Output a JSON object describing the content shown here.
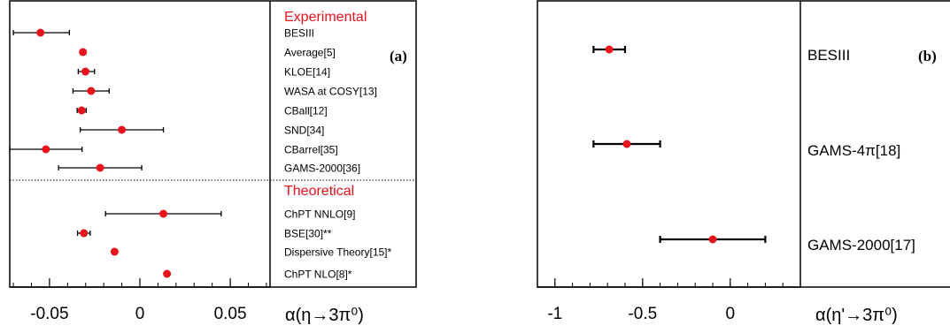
{
  "chart_data": [
    {
      "type": "scatter",
      "panel_tag": "(a)",
      "xlabel": "α(η→3π⁰)",
      "xlim": [
        -0.072,
        0.072
      ],
      "xticks": [
        -0.05,
        0,
        0.05
      ],
      "xtick_labels": [
        "-0.05",
        "0",
        "0.05"
      ],
      "sections": [
        {
          "title": "Experimental",
          "rows": [
            {
              "label": "BESIII",
              "value": -0.055,
              "err_lo": 0.015,
              "err_hi": 0.016
            },
            {
              "label": "Average[5]",
              "value": -0.0315,
              "err_lo": 0.0015,
              "err_hi": 0.0015
            },
            {
              "label": "KLOE[14]",
              "value": -0.0301,
              "err_lo": 0.004,
              "err_hi": 0.005
            },
            {
              "label": "WASA at COSY[13]",
              "value": -0.027,
              "err_lo": 0.01,
              "err_hi": 0.01
            },
            {
              "label": "CBall[12]",
              "value": -0.0322,
              "err_lo": 0.0025,
              "err_hi": 0.0025
            },
            {
              "label": "SND[34]",
              "value": -0.01,
              "err_lo": 0.023,
              "err_hi": 0.023
            },
            {
              "label": "CBarrel[35]",
              "value": -0.052,
              "err_lo": 0.02,
              "err_hi": 0.02
            },
            {
              "label": "GAMS-2000[36]",
              "value": -0.022,
              "err_lo": 0.023,
              "err_hi": 0.023
            }
          ]
        },
        {
          "title": "Theoretical",
          "rows": [
            {
              "label": "ChPT NNLO[9]",
              "value": 0.013,
              "err_lo": 0.032,
              "err_hi": 0.032
            },
            {
              "label": "BSE[30]**",
              "value": -0.031,
              "err_lo": 0.0035,
              "err_hi": 0.0035
            },
            {
              "label": "Dispersive Theory[15]*",
              "value": -0.014,
              "err_lo": 0,
              "err_hi": 0
            },
            {
              "label": "ChPT NLO[8]*",
              "value": 0.015,
              "err_lo": 0,
              "err_hi": 0
            }
          ]
        }
      ]
    },
    {
      "type": "scatter",
      "panel_tag": "(b)",
      "xlabel": "α(η'→3π⁰)",
      "xlim": [
        -1.1,
        0.4
      ],
      "xticks": [
        -1,
        -0.5,
        0
      ],
      "xtick_labels": [
        "-1",
        "-0.5",
        "0"
      ],
      "rows": [
        {
          "label": "BESIII",
          "value": -0.69,
          "err_lo": 0.09,
          "err_hi": 0.09
        },
        {
          "label": "GAMS-4π[18]",
          "value": -0.59,
          "err_lo": 0.19,
          "err_hi": 0.19
        },
        {
          "label": "GAMS-2000[17]",
          "value": -0.1,
          "err_lo": 0.3,
          "err_hi": 0.3
        }
      ]
    }
  ],
  "colors": {
    "marker": "#e8131b",
    "section_title": "#e8131b",
    "axes": "#000000"
  }
}
